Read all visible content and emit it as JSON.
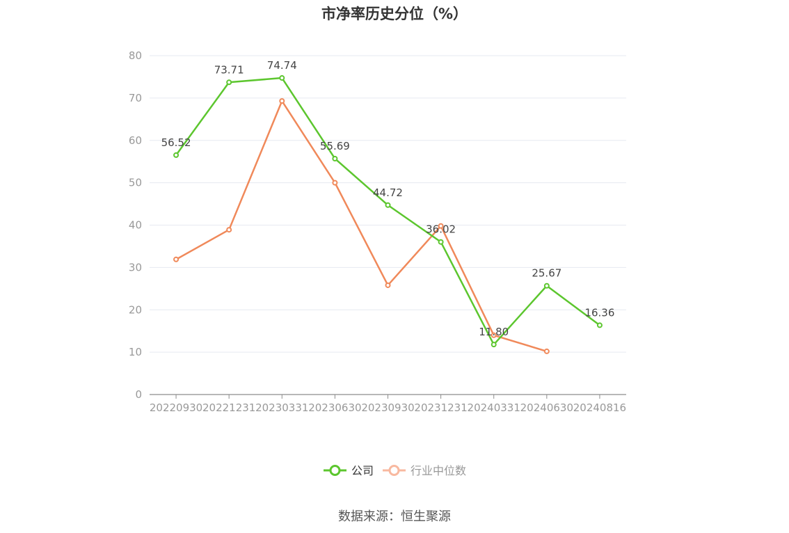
{
  "chart_data": {
    "type": "line",
    "title": "市净率历史分位（%）",
    "categories": [
      "20220930",
      "20221231",
      "20230331",
      "20230630",
      "20230930",
      "20231231",
      "20240331",
      "20240630",
      "20240816"
    ],
    "series": [
      {
        "name": "公司",
        "color": "#5cc62e",
        "values": [
          56.52,
          73.71,
          74.74,
          55.69,
          44.72,
          36.02,
          11.8,
          25.67,
          16.36
        ],
        "labels": [
          "56.52",
          "73.71",
          "74.74",
          "55.69",
          "44.72",
          "36.02",
          "11.80",
          "25.67",
          "16.36"
        ]
      },
      {
        "name": "行业中位数",
        "color": "#f0895a",
        "legend_color": "#f8b9a0",
        "values": [
          31.9,
          38.9,
          69.3,
          50.0,
          25.8,
          39.8,
          14.0,
          10.2,
          null
        ]
      }
    ],
    "ylim": [
      0,
      80
    ],
    "yticks": [
      0,
      10,
      20,
      30,
      40,
      50,
      60,
      70,
      80
    ],
    "grid": true,
    "legend_position": "bottom-center"
  },
  "source": "数据来源：恒生聚源"
}
